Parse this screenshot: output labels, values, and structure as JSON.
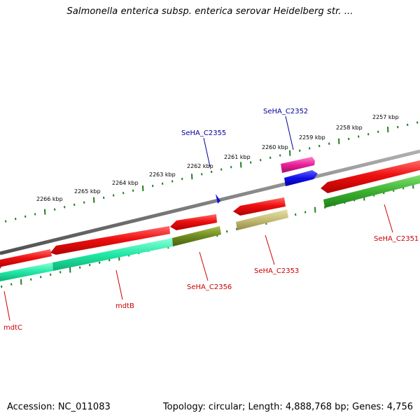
{
  "title": "Salmonella enterica subsp. enterica serovar Heidelberg str. ...",
  "footer": {
    "accession": "Accession: NC_011083",
    "summary": "Topology: circular; Length: 4,888,768 bp; Genes: 4,756"
  },
  "scale_labels": [
    "2257 kbp",
    "2258 kbp",
    "2259 kbp",
    "2260 kbp",
    "2261 kbp",
    "2262 kbp",
    "2263 kbp",
    "2264 kbp",
    "2265 kbp",
    "2266 kbp"
  ],
  "gene_labels": {
    "mdtC": "mdtC",
    "mdtB": "mdtB",
    "SeHA_C2356": "SeHA_C2356",
    "SeHA_C2355": "SeHA_C2355",
    "SeHA_C2353": "SeHA_C2353",
    "SeHA_C2352": "SeHA_C2352",
    "SeHA_C2351": "SeHA_C2351"
  },
  "colors": {
    "backbone": "#808080",
    "cds_forward": "#e81010",
    "cds_reverse": "#e81010",
    "mdt_cog": "#20e8a0",
    "olive_cog": "#708a20",
    "khaki_cog": "#c0b870",
    "green_cog": "#40b030",
    "magenta_cog": "#e0209a",
    "blue_feature": "#1010e0",
    "tick": "#208020",
    "label_red": "#cc0000",
    "label_blue": "#000099"
  }
}
